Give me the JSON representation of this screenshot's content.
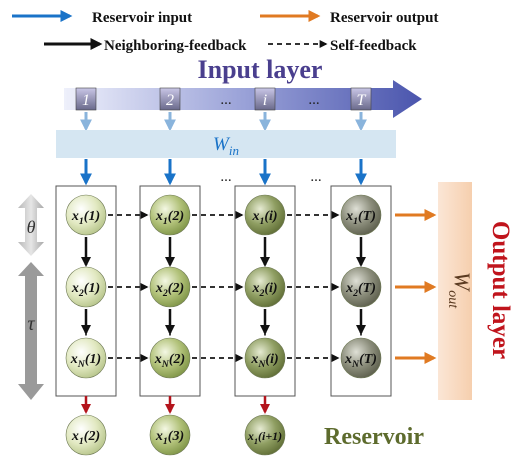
{
  "legend": {
    "reservoir_input": "Reservoir input",
    "reservoir_output": "Reservoir output",
    "neighboring_feedback": "Neighboring-feedback",
    "self_feedback": "Self-feedback"
  },
  "input_layer": {
    "title": "Input layer",
    "time_steps": [
      "1",
      "2",
      "i",
      "T"
    ],
    "ellipsis": "..."
  },
  "win_label": {
    "main": "W",
    "sub": "in"
  },
  "reservoir": {
    "title": "Reservoir",
    "ellipsis": "...",
    "columns": [
      {
        "t": "1",
        "nodes": [
          "x1(1)",
          "x2(1)",
          "xN(1)"
        ],
        "next": "x1(2)"
      },
      {
        "t": "2",
        "nodes": [
          "x1(2)",
          "x2(2)",
          "xN(2)"
        ],
        "next": "x1(3)"
      },
      {
        "t": "i",
        "nodes": [
          "x1(i)",
          "x2(i)",
          "xN(i)"
        ],
        "next": "x1(i+1)"
      },
      {
        "t": "T",
        "nodes": [
          "x1(T)",
          "x2(T)",
          "xN(T)"
        ],
        "next": ""
      }
    ]
  },
  "delay_axis": {
    "theta": "θ",
    "tau": "τ"
  },
  "wout_label": {
    "main": "W",
    "sub": "out"
  },
  "output_layer": {
    "title": "Output layer"
  },
  "colors": {
    "blue_arrow": "#1a73c8",
    "orange_arrow": "#e07a22",
    "input_band": "#5a64b4",
    "win_band": "#d5e6f2",
    "wout_band": "#f9dcc4",
    "title_purple": "#4a3f8e",
    "output_red": "#c0141c",
    "reservoir_green": "#5d6b2d",
    "red_arrow": "#b4141c"
  }
}
